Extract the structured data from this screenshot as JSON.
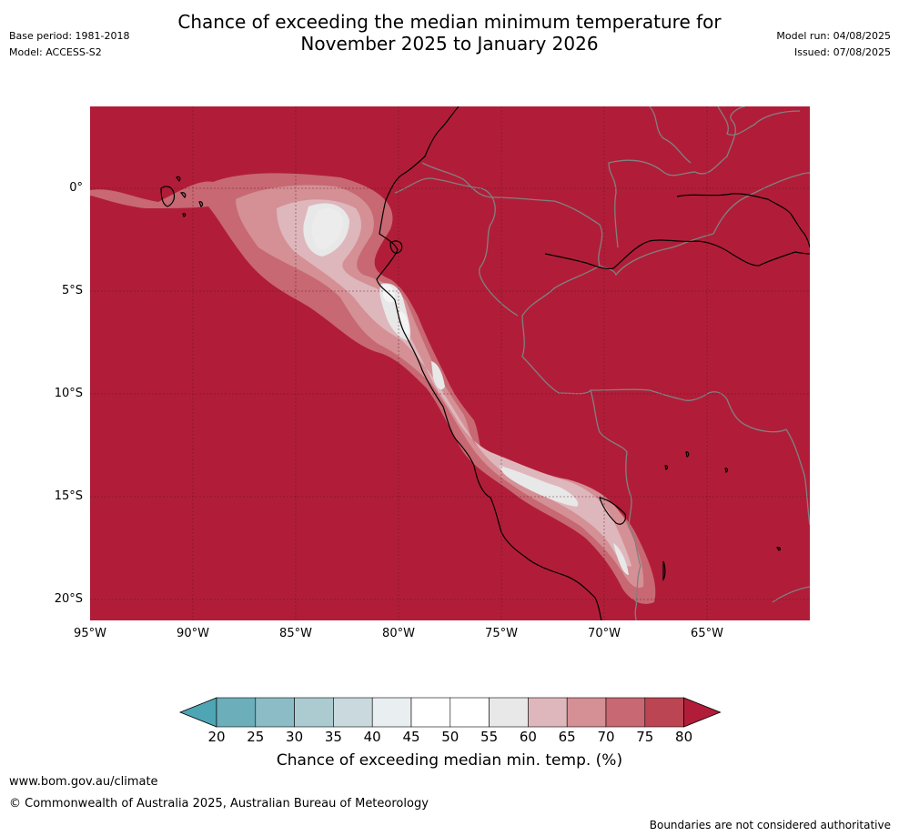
{
  "header": {
    "title_line1": "Chance of exceeding the median minimum temperature for",
    "title_line2": "November 2025 to January 2026",
    "base_period": "Base period: 1981-2018",
    "model": "Model: ACCESS-S2",
    "model_run": "Model run: 04/08/2025",
    "issued": "Issued: 07/08/2025"
  },
  "map": {
    "lat_labels": [
      "0°",
      "5°S",
      "10°S",
      "15°S",
      "20°S"
    ],
    "lon_labels": [
      "95°W",
      "90°W",
      "85°W",
      "80°W",
      "75°W",
      "70°W",
      "65°W"
    ],
    "background_color": "#b11d38",
    "coastline_color": "#000000",
    "border_color": "#808080"
  },
  "colorbar": {
    "ticks": [
      "20",
      "25",
      "30",
      "35",
      "40",
      "45",
      "50",
      "55",
      "60",
      "65",
      "70",
      "75",
      "80"
    ],
    "colors": [
      "#4ea5b4",
      "#6caeba",
      "#8cbcc6",
      "#abcbd1",
      "#c9d9dd",
      "#e9eef0",
      "#ffffff",
      "#ffffff",
      "#e8e8e8",
      "#deb7bc",
      "#d49095",
      "#c76873",
      "#bb4553",
      "#b11d38"
    ],
    "label": "Chance of exceeding median min. temp. (%)"
  },
  "footer": {
    "website": "www.bom.gov.au/climate",
    "copyright": "© Commonwealth of Australia 2025, Australian Bureau of Meteorology",
    "disclaimer": "Boundaries are not considered authoritative"
  }
}
